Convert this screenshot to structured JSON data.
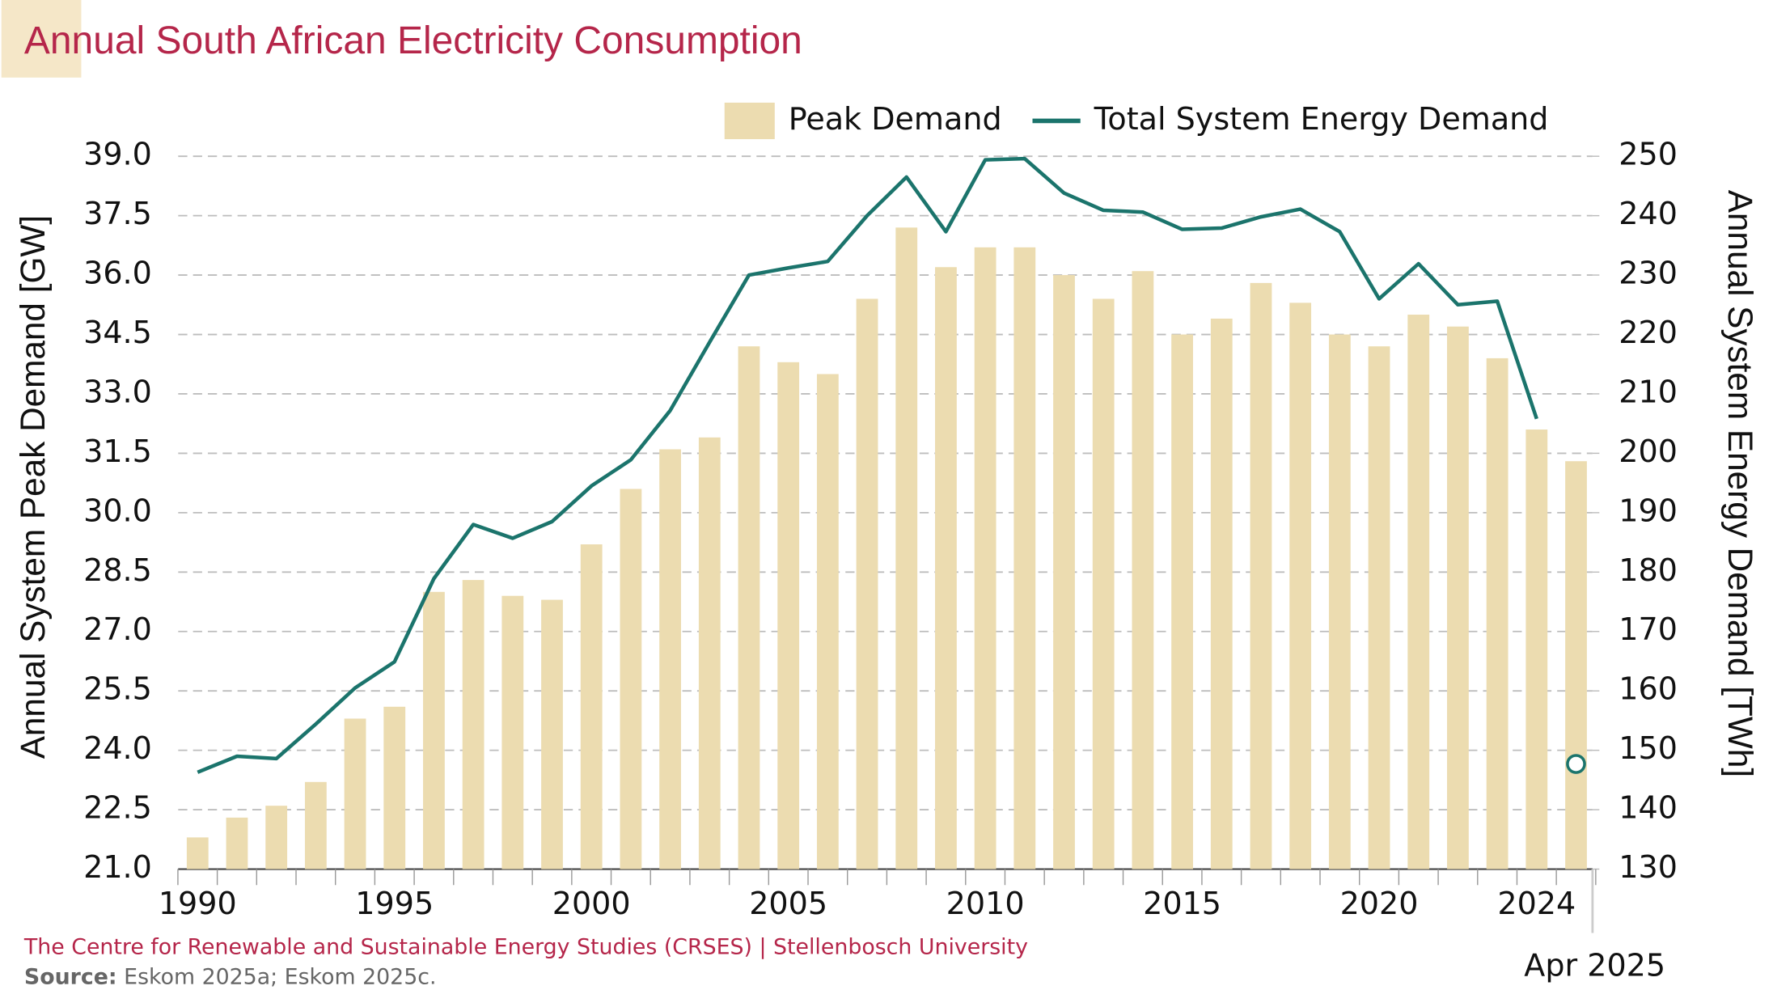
{
  "chart_data": {
    "type": "bar_line",
    "title": "Annual South African Electricity Consumption",
    "y_label": "Annual System Peak Demand [GW]",
    "y2_label": "Annual System Energy Demand [TWh]",
    "credit": "The Centre for Renewable and Sustainable Energy Studies (CRSES) | Stellenbosch University",
    "source_label": "Source:",
    "source_text": "Eskom 2025a; Eskom 2025c.",
    "categories": [
      "1990",
      null,
      null,
      null,
      null,
      "1995",
      null,
      null,
      null,
      null,
      "2000",
      null,
      null,
      null,
      null,
      "2005",
      null,
      null,
      null,
      null,
      "2010",
      null,
      null,
      null,
      null,
      "2015",
      null,
      null,
      null,
      null,
      "2020",
      null,
      null,
      null,
      "2024",
      "Apr 2025"
    ],
    "series": [
      {
        "name": "Peak Demand",
        "kind": "bar",
        "color": "#ecdcb0",
        "values": [
          21.8,
          22.3,
          22.6,
          23.2,
          24.8,
          25.1,
          28.0,
          28.3,
          27.9,
          27.8,
          29.2,
          30.6,
          31.6,
          31.9,
          34.2,
          33.8,
          33.5,
          35.4,
          37.2,
          36.2,
          36.7,
          36.7,
          36.0,
          35.4,
          36.1,
          34.5,
          34.9,
          35.8,
          35.3,
          34.5,
          34.2,
          35.0,
          34.7,
          33.9,
          32.1,
          31.3
        ]
      },
      {
        "name": "Total System Energy Demand",
        "kind": "line",
        "axis": "y2",
        "color": "#1b746c",
        "last_point_marker": true,
        "values": [
          146.3,
          149.0,
          148.6,
          154.4,
          160.5,
          164.9,
          178.9,
          188.0,
          185.7,
          188.5,
          194.5,
          198.9,
          207.2,
          218.7,
          230.0,
          231.2,
          232.3,
          240.0,
          246.5,
          237.3,
          249.4,
          249.6,
          243.8,
          240.9,
          240.6,
          237.7,
          237.9,
          239.8,
          241.1,
          237.3,
          226.0,
          231.9,
          225.0,
          225.6,
          205.8,
          147.7
        ]
      }
    ],
    "ylim": [
      21,
      39
    ],
    "yticks": [
      {
        "value": 21,
        "label": "21.0"
      },
      22.5,
      {
        "value": 24,
        "label": "24.0"
      },
      25.5,
      {
        "value": 27,
        "label": "27.0"
      },
      28.5,
      {
        "value": 30,
        "label": "30.0"
      },
      31.5,
      {
        "value": 33,
        "label": "33.0"
      },
      34.5,
      {
        "value": 36,
        "label": "36.0"
      },
      37.5,
      {
        "value": 39,
        "label": "39.0"
      }
    ],
    "y2lim": [
      130,
      250
    ],
    "y2ticks": [
      130,
      140,
      150,
      160,
      170,
      180,
      190,
      200,
      210,
      220,
      230,
      240,
      250
    ],
    "grid": true,
    "legend": "top-right"
  }
}
